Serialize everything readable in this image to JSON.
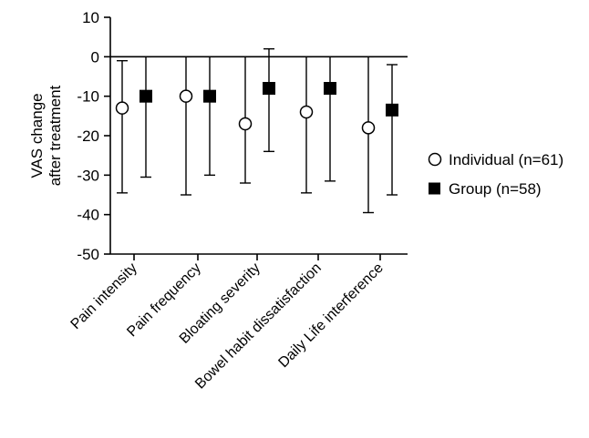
{
  "chart_data": {
    "type": "scatter",
    "title": "",
    "xlabel": "",
    "ylabel_lines": [
      "VAS change",
      "after treatment"
    ],
    "ylim": [
      -50,
      10
    ],
    "yticks": [
      10,
      0,
      -10,
      -20,
      -30,
      -40,
      -50
    ],
    "grid": false,
    "zero_line": true,
    "legend_position": "right",
    "categories": [
      "Pain intensity",
      "Pain frequency",
      "Bloating severity",
      "Bowel habit dissatisfaction",
      "Daily Life interference"
    ],
    "series": [
      {
        "name": "Individual (n=61)",
        "marker": "open-circle",
        "color": "#000000",
        "values": [
          -13,
          -10,
          -17,
          -14,
          -18
        ],
        "error_low": [
          -34.5,
          -35,
          -32,
          -34.5,
          -39.5
        ],
        "error_high": [
          -1,
          0,
          0,
          0,
          0
        ]
      },
      {
        "name": "Group (n=58)",
        "marker": "filled-square",
        "color": "#000000",
        "values": [
          -10,
          -10,
          -8,
          -8,
          -13.5
        ],
        "error_low": [
          -30.5,
          -30,
          -24,
          -31.5,
          -35
        ],
        "error_high": [
          0,
          0,
          2,
          0,
          -2
        ]
      }
    ]
  }
}
